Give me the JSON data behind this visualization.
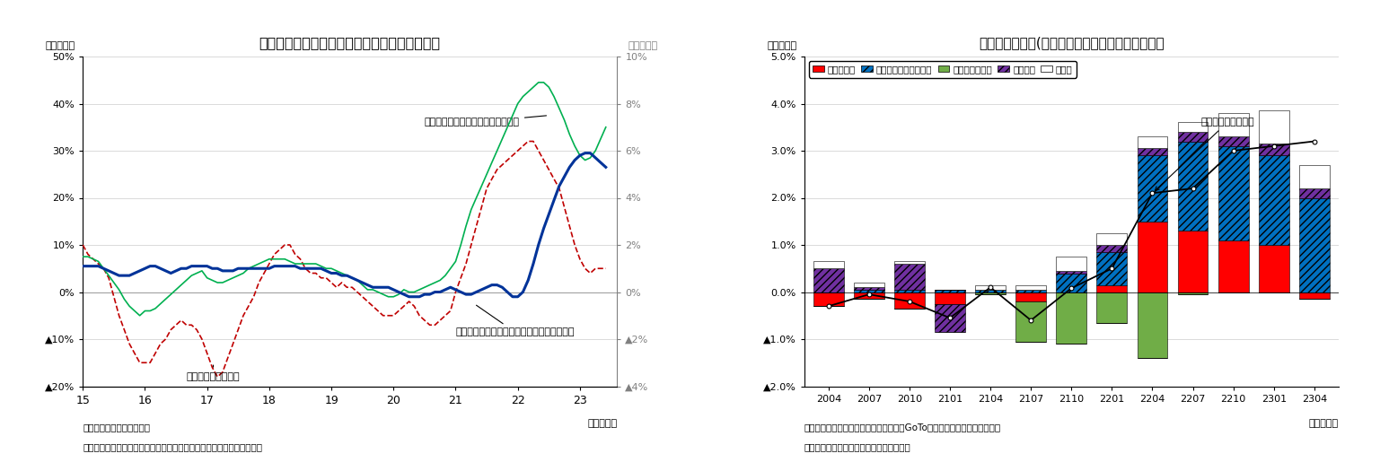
{
  "chart1": {
    "title": "食料品の輸入物価、国内企業物価、消費者物価",
    "ylabel_left": "（前年比）",
    "ylabel_right": "（前年比）",
    "xlabel": "（年・月）",
    "note1": "（注）消費税の影響を除く",
    "note2": "（資料）日本銀行「企業物価指数」、総務省統計局「消費者物価指数」",
    "ylim_left": [
      -20,
      50
    ],
    "ylim_right": [
      -4,
      10
    ],
    "yticks_left": [
      -20,
      -10,
      0,
      10,
      20,
      30,
      40,
      50
    ],
    "yticks_right": [
      -4,
      -2,
      0,
      2,
      4,
      6,
      8,
      10
    ],
    "ytick_labels_left": [
      "▲20%",
      "▲10%",
      "0%",
      "10%",
      "20%",
      "30%",
      "40%",
      "50%"
    ],
    "ytick_labels_right": [
      "▲4%",
      "▲2%",
      "0%",
      "2%",
      "4%",
      "6%",
      "8%",
      "10%"
    ],
    "xtick_pos": [
      2015,
      2016,
      2017,
      2018,
      2019,
      2020,
      2021,
      2022,
      2023
    ],
    "xtick_labels": [
      "15",
      "16",
      "17",
      "18",
      "19",
      "20",
      "21",
      "22",
      "23"
    ],
    "import_price_label": "飲食料品・輸入物価",
    "domestic_price_label": "飲食料品・国内企業物価（右目盛）",
    "consumer_price_label": "生鮮食品を除く食料・消費者物価（右目盛）",
    "import_color": "#c00000",
    "domestic_color": "#00b050",
    "consumer_color": "#003399",
    "import_x": [
      2015.0,
      2015.083,
      2015.167,
      2015.25,
      2015.333,
      2015.417,
      2015.5,
      2015.583,
      2015.667,
      2015.75,
      2015.833,
      2015.917,
      2016.0,
      2016.083,
      2016.167,
      2016.25,
      2016.333,
      2016.417,
      2016.5,
      2016.583,
      2016.667,
      2016.75,
      2016.833,
      2016.917,
      2017.0,
      2017.083,
      2017.167,
      2017.25,
      2017.333,
      2017.417,
      2017.5,
      2017.583,
      2017.667,
      2017.75,
      2017.833,
      2017.917,
      2018.0,
      2018.083,
      2018.167,
      2018.25,
      2018.333,
      2018.417,
      2018.5,
      2018.583,
      2018.667,
      2018.75,
      2018.833,
      2018.917,
      2019.0,
      2019.083,
      2019.167,
      2019.25,
      2019.333,
      2019.417,
      2019.5,
      2019.583,
      2019.667,
      2019.75,
      2019.833,
      2019.917,
      2020.0,
      2020.083,
      2020.167,
      2020.25,
      2020.333,
      2020.417,
      2020.5,
      2020.583,
      2020.667,
      2020.75,
      2020.833,
      2020.917,
      2021.0,
      2021.083,
      2021.167,
      2021.25,
      2021.333,
      2021.417,
      2021.5,
      2021.583,
      2021.667,
      2021.75,
      2021.833,
      2021.917,
      2022.0,
      2022.083,
      2022.167,
      2022.25,
      2022.333,
      2022.417,
      2022.5,
      2022.583,
      2022.667,
      2022.75,
      2022.833,
      2022.917,
      2023.0,
      2023.083,
      2023.167,
      2023.25,
      2023.333,
      2023.417
    ],
    "import_price": [
      10,
      8,
      7,
      6,
      5,
      3,
      -1,
      -5,
      -8,
      -11,
      -13,
      -15,
      -15,
      -15,
      -13,
      -11,
      -10,
      -8,
      -7,
      -6,
      -7,
      -7,
      -8,
      -10,
      -13,
      -16,
      -18,
      -17,
      -14,
      -11,
      -8,
      -5,
      -3,
      -1,
      2,
      4,
      6,
      8,
      9,
      10,
      10,
      8,
      7,
      5,
      4,
      4,
      3,
      3,
      2,
      1,
      2,
      1,
      1,
      0,
      -1,
      -2,
      -3,
      -4,
      -5,
      -5,
      -5,
      -4,
      -3,
      -2,
      -3,
      -5,
      -6,
      -7,
      -7,
      -6,
      -5,
      -4,
      0,
      3,
      6,
      10,
      14,
      18,
      22,
      24,
      26,
      27,
      28,
      29,
      30,
      31,
      32,
      32,
      30,
      28,
      26,
      24,
      22,
      18,
      14,
      10,
      7,
      5,
      4,
      5,
      5,
      5
    ],
    "domestic_x": [
      2015.0,
      2015.083,
      2015.167,
      2015.25,
      2015.333,
      2015.417,
      2015.5,
      2015.583,
      2015.667,
      2015.75,
      2015.833,
      2015.917,
      2016.0,
      2016.083,
      2016.167,
      2016.25,
      2016.333,
      2016.417,
      2016.5,
      2016.583,
      2016.667,
      2016.75,
      2016.833,
      2016.917,
      2017.0,
      2017.083,
      2017.167,
      2017.25,
      2017.333,
      2017.417,
      2017.5,
      2017.583,
      2017.667,
      2017.75,
      2017.833,
      2017.917,
      2018.0,
      2018.083,
      2018.167,
      2018.25,
      2018.333,
      2018.417,
      2018.5,
      2018.583,
      2018.667,
      2018.75,
      2018.833,
      2018.917,
      2019.0,
      2019.083,
      2019.167,
      2019.25,
      2019.333,
      2019.417,
      2019.5,
      2019.583,
      2019.667,
      2019.75,
      2019.833,
      2019.917,
      2020.0,
      2020.083,
      2020.167,
      2020.25,
      2020.333,
      2020.417,
      2020.5,
      2020.583,
      2020.667,
      2020.75,
      2020.833,
      2020.917,
      2021.0,
      2021.083,
      2021.167,
      2021.25,
      2021.333,
      2021.417,
      2021.5,
      2021.583,
      2021.667,
      2021.75,
      2021.833,
      2021.917,
      2022.0,
      2022.083,
      2022.167,
      2022.25,
      2022.333,
      2022.417,
      2022.5,
      2022.583,
      2022.667,
      2022.75,
      2022.833,
      2022.917,
      2023.0,
      2023.083,
      2023.167,
      2023.25,
      2023.333,
      2023.417
    ],
    "domestic_price": [
      1.5,
      1.5,
      1.4,
      1.3,
      1.0,
      0.7,
      0.4,
      0.1,
      -0.3,
      -0.6,
      -0.8,
      -1.0,
      -0.8,
      -0.8,
      -0.7,
      -0.5,
      -0.3,
      -0.1,
      0.1,
      0.3,
      0.5,
      0.7,
      0.8,
      0.9,
      0.6,
      0.5,
      0.4,
      0.4,
      0.5,
      0.6,
      0.7,
      0.8,
      1.0,
      1.1,
      1.2,
      1.3,
      1.4,
      1.4,
      1.4,
      1.4,
      1.3,
      1.2,
      1.2,
      1.2,
      1.2,
      1.2,
      1.1,
      1.0,
      1.0,
      0.9,
      0.8,
      0.7,
      0.6,
      0.5,
      0.3,
      0.1,
      0.1,
      0.0,
      -0.1,
      -0.2,
      -0.2,
      -0.1,
      0.1,
      0.0,
      0.0,
      0.1,
      0.2,
      0.3,
      0.4,
      0.5,
      0.7,
      1.0,
      1.3,
      2.0,
      2.8,
      3.5,
      4.0,
      4.5,
      5.0,
      5.5,
      6.0,
      6.5,
      7.0,
      7.5,
      8.0,
      8.3,
      8.5,
      8.7,
      8.9,
      8.9,
      8.7,
      8.3,
      7.8,
      7.3,
      6.7,
      6.2,
      5.8,
      5.6,
      5.7,
      6.0,
      6.5,
      7.0
    ],
    "consumer_price": [
      1.1,
      1.1,
      1.1,
      1.1,
      1.0,
      0.9,
      0.8,
      0.7,
      0.7,
      0.7,
      0.8,
      0.9,
      1.0,
      1.1,
      1.1,
      1.0,
      0.9,
      0.8,
      0.9,
      1.0,
      1.0,
      1.1,
      1.1,
      1.1,
      1.1,
      1.0,
      1.0,
      0.9,
      0.9,
      0.9,
      1.0,
      1.0,
      1.0,
      1.0,
      1.0,
      1.0,
      1.0,
      1.1,
      1.1,
      1.1,
      1.1,
      1.1,
      1.0,
      1.0,
      1.0,
      1.0,
      1.0,
      0.9,
      0.8,
      0.8,
      0.7,
      0.7,
      0.6,
      0.5,
      0.4,
      0.3,
      0.2,
      0.2,
      0.2,
      0.2,
      0.1,
      0.0,
      -0.1,
      -0.2,
      -0.2,
      -0.2,
      -0.1,
      -0.1,
      0.0,
      0.0,
      0.1,
      0.2,
      0.1,
      0.0,
      -0.1,
      -0.1,
      0.0,
      0.1,
      0.2,
      0.3,
      0.3,
      0.2,
      0.0,
      -0.2,
      -0.2,
      0.0,
      0.5,
      1.2,
      2.0,
      2.7,
      3.3,
      3.9,
      4.5,
      4.9,
      5.3,
      5.6,
      5.8,
      5.9,
      5.9,
      5.7,
      5.5,
      5.3
    ]
  },
  "chart2": {
    "title": "消費者物価指数(生鮮食品除く、全国）の要因分解",
    "ylabel_left": "（前年比）",
    "xlabel": "（年・月）",
    "note1": "（注）制度要因は消費税、教育無償化、GoToトラベル事業、全国旅行支援",
    "note2": "（資料）総務省統計局「消費者物価指数」",
    "ylim": [
      -2.0,
      5.0
    ],
    "yticks": [
      -2.0,
      -1.0,
      0.0,
      1.0,
      2.0,
      3.0,
      4.0,
      5.0
    ],
    "ytick_labels": [
      "▲2.0%",
      "▲1.0%",
      "0.0%",
      "1.0%",
      "2.0%",
      "3.0%",
      "4.0%",
      "5.0%"
    ],
    "xtick_labels": [
      "2004",
      "2007",
      "2010",
      "2101",
      "2104",
      "2107",
      "2110",
      "2201",
      "2204",
      "2207",
      "2210",
      "2301",
      "2304"
    ],
    "legend_labels": [
      "エネルギー",
      "食料（生鮮食品除く）",
      "携帯電話通信料",
      "制度要因",
      "その他"
    ],
    "energy_color": "#ff0000",
    "food_color": "#0070c0",
    "mobile_color": "#70ad47",
    "policy_color": "#7030a0",
    "other_color": "#ffffff",
    "annotation": "生鮮食品を除く総合",
    "energy": [
      -0.3,
      -0.15,
      -0.35,
      -0.25,
      0.0,
      -0.2,
      0.0,
      0.15,
      1.5,
      1.3,
      1.1,
      1.0,
      -0.15
    ],
    "food": [
      0.0,
      0.05,
      0.05,
      0.05,
      0.05,
      0.05,
      0.4,
      0.7,
      1.4,
      1.9,
      2.0,
      1.9,
      2.0
    ],
    "mobile": [
      0.0,
      0.0,
      0.0,
      0.0,
      -0.05,
      -0.85,
      -1.1,
      -0.65,
      -1.4,
      -0.05,
      0.0,
      0.0,
      0.0
    ],
    "policy": [
      0.5,
      0.05,
      0.55,
      -0.6,
      0.0,
      0.0,
      0.05,
      0.15,
      0.15,
      0.2,
      0.2,
      0.25,
      0.2
    ],
    "other": [
      0.15,
      0.1,
      0.05,
      0.0,
      0.1,
      0.1,
      0.3,
      0.25,
      0.25,
      0.2,
      0.5,
      0.7,
      0.5
    ],
    "total": [
      -0.3,
      -0.05,
      -0.2,
      -0.55,
      0.1,
      -0.6,
      0.08,
      0.5,
      2.1,
      2.2,
      3.0,
      3.1,
      3.2
    ]
  }
}
